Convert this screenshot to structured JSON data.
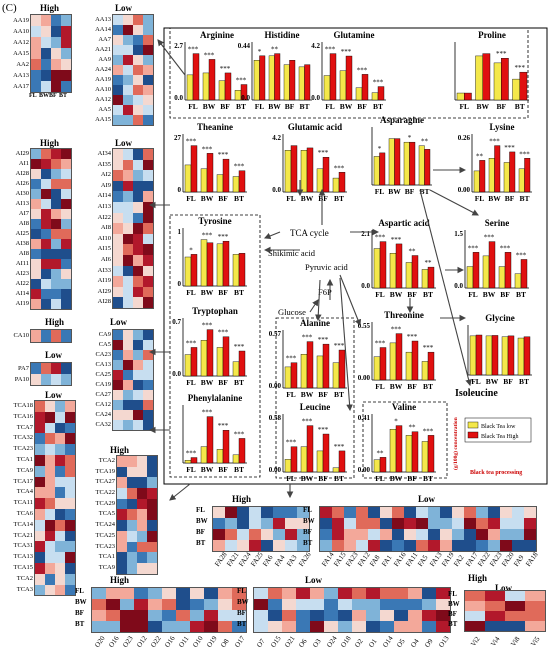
{
  "panel_label": "(C)",
  "group_labels": {
    "high": "High",
    "low": "Low"
  },
  "conditions": [
    "FL",
    "BW",
    "BF",
    "BT"
  ],
  "legend": {
    "low": "Black Tea low",
    "high": "Black Tea High",
    "ylabel": "(g/100g) concentration",
    "xlabel": "Black tea processing"
  },
  "pathway": {
    "tca_cycle": "TCA cycle",
    "shikimic_acid": "Shikimic acid",
    "pyruvic_acid": "Pyruvic acid",
    "f6p": "F6P",
    "glucose": "Glucose",
    "isoleucine": "Isoleucine"
  },
  "colors": {
    "low": "#f4e84a",
    "high": "#e01010",
    "arrow": "#444444"
  },
  "chart_data": [
    {
      "type": "bar",
      "title": "Arginine",
      "categories": [
        "FL",
        "BW",
        "BF",
        "BT"
      ],
      "ymax_label": "2.7",
      "ymin_label": "0.0",
      "series": [
        {
          "name": "Black Tea low",
          "values": [
            1.3,
            1.4,
            1.0,
            0.5
          ]
        },
        {
          "name": "Black Tea High",
          "values": [
            2.4,
            2.1,
            1.4,
            0.8
          ]
        }
      ],
      "sig": [
        "***",
        "***",
        "***",
        "***"
      ]
    },
    {
      "type": "bar",
      "title": "Histidine",
      "categories": [
        "FL",
        "BW",
        "BF",
        "BT"
      ],
      "ymax_label": "0.44",
      "ymin_label": "0.0",
      "series": [
        {
          "name": "Black Tea low",
          "values": [
            0.36,
            0.4,
            0.32,
            0.3
          ]
        },
        {
          "name": "Black Tea High",
          "values": [
            0.4,
            0.42,
            0.36,
            0.32
          ]
        }
      ],
      "sig": [
        "*",
        "**",
        "",
        ""
      ]
    },
    {
      "type": "bar",
      "title": "Glutamine",
      "categories": [
        "FL",
        "BW",
        "BF",
        "BT"
      ],
      "ymax_label": "4.2",
      "ymin_label": "0.0",
      "series": [
        {
          "name": "Black Tea low",
          "values": [
            2.0,
            2.4,
            1.0,
            0.6
          ]
        },
        {
          "name": "Black Tea High",
          "values": [
            3.8,
            3.6,
            2.1,
            1.1
          ]
        }
      ],
      "sig": [
        "***",
        "***",
        "***",
        "***"
      ]
    },
    {
      "type": "bar",
      "title": "Proline",
      "categories": [
        "FL",
        "BW",
        "BF",
        "BT"
      ],
      "ymax_label": "",
      "ymin_label": "",
      "series": [
        {
          "name": "Black Tea low",
          "values": [
            0.3,
            1.9,
            1.6,
            0.9
          ]
        },
        {
          "name": "Black Tea High",
          "values": [
            0.3,
            2.0,
            1.8,
            1.2
          ]
        }
      ],
      "sig": [
        "",
        "",
        "***",
        "***"
      ]
    },
    {
      "type": "bar",
      "title": "Theanine",
      "categories": [
        "FL",
        "BW",
        "BF",
        "BT"
      ],
      "ymax_label": "27",
      "ymin_label": "0",
      "series": [
        {
          "name": "Black Tea low",
          "values": [
            14,
            12,
            9,
            8
          ]
        },
        {
          "name": "Black Tea High",
          "values": [
            24,
            20,
            17,
            11
          ]
        }
      ],
      "sig": [
        "***",
        "***",
        "***",
        "***"
      ]
    },
    {
      "type": "bar",
      "title": "Glutamic acid",
      "categories": [
        "FL",
        "BW",
        "BF",
        "BT"
      ],
      "ymax_label": "4.2",
      "ymin_label": "0.0",
      "series": [
        {
          "name": "Black Tea low",
          "values": [
            3.6,
            3.6,
            2.0,
            1.2
          ]
        },
        {
          "name": "Black Tea High",
          "values": [
            4.0,
            3.8,
            3.0,
            1.7
          ]
        }
      ],
      "sig": [
        "",
        "",
        "***",
        "***"
      ]
    },
    {
      "type": "bar",
      "title": "Asparagine",
      "categories": [
        "FL",
        "BW",
        "BF",
        "BT"
      ],
      "ymax_label": "",
      "ymin_label": "",
      "series": [
        {
          "name": "Black Tea low",
          "values": [
            0.8,
            1.3,
            1.2,
            1.1
          ]
        },
        {
          "name": "Black Tea High",
          "values": [
            0.9,
            1.3,
            1.2,
            1.0
          ]
        }
      ],
      "sig": [
        "*",
        "",
        "*",
        "**"
      ]
    },
    {
      "type": "bar",
      "title": "Lysine",
      "categories": [
        "FL",
        "BW",
        "BF",
        "BT"
      ],
      "ymax_label": "0.26",
      "ymin_label": "0.00",
      "series": [
        {
          "name": "Black Tea low",
          "values": [
            0.1,
            0.16,
            0.14,
            0.11
          ]
        },
        {
          "name": "Black Tea High",
          "values": [
            0.15,
            0.22,
            0.19,
            0.16
          ]
        }
      ],
      "sig": [
        "**",
        "***",
        "***",
        "***"
      ]
    },
    {
      "type": "bar",
      "title": "Tyrosine",
      "categories": [
        "FL",
        "BW",
        "BF",
        "BT"
      ],
      "ymax_label": "1",
      "ymin_label": "0",
      "series": [
        {
          "name": "Black Tea low",
          "values": [
            0.55,
            0.88,
            0.8,
            0.6
          ]
        },
        {
          "name": "Black Tea High",
          "values": [
            0.6,
            0.82,
            0.85,
            0.62
          ]
        }
      ],
      "sig": [
        "*",
        "***",
        "***",
        ""
      ]
    },
    {
      "type": "bar",
      "title": "Aspartic acid",
      "categories": [
        "FL",
        "BW",
        "BF",
        "BT"
      ],
      "ymax_label": "2.1",
      "ymin_label": "0.0",
      "series": [
        {
          "name": "Black Tea low",
          "values": [
            1.7,
            1.5,
            1.1,
            0.8
          ]
        },
        {
          "name": "Black Tea High",
          "values": [
            2.0,
            1.9,
            1.4,
            0.9
          ]
        }
      ],
      "sig": [
        "***",
        "***",
        "**",
        "**"
      ]
    },
    {
      "type": "bar",
      "title": "Serine",
      "categories": [
        "FL",
        "BW",
        "BF",
        "BT"
      ],
      "ymax_label": "1.5",
      "ymin_label": "0.0",
      "series": [
        {
          "name": "Black Tea low",
          "values": [
            0.6,
            0.9,
            0.6,
            0.4
          ]
        },
        {
          "name": "Black Tea High",
          "values": [
            1.0,
            1.3,
            1.0,
            0.8
          ]
        }
      ],
      "sig": [
        "***",
        "***",
        "***",
        "***"
      ]
    },
    {
      "type": "bar",
      "title": "Tryptophan",
      "categories": [
        "FL",
        "BW",
        "BF",
        "BT"
      ],
      "ymax_label": "0.7",
      "ymin_label": "0.0",
      "series": [
        {
          "name": "Black Tea low",
          "values": [
            0.3,
            0.5,
            0.4,
            0.2
          ]
        },
        {
          "name": "Black Tea High",
          "values": [
            0.4,
            0.65,
            0.55,
            0.35
          ]
        }
      ],
      "sig": [
        "***",
        "***",
        "***",
        "***"
      ]
    },
    {
      "type": "bar",
      "title": "Alanine",
      "categories": [
        "FL",
        "BW",
        "BF",
        "BT"
      ],
      "ymax_label": "0.57",
      "ymin_label": "0.00",
      "series": [
        {
          "name": "Black Tea low",
          "values": [
            0.25,
            0.4,
            0.38,
            0.3
          ]
        },
        {
          "name": "Black Tea High",
          "values": [
            0.3,
            0.55,
            0.52,
            0.45
          ]
        }
      ],
      "sig": [
        "***",
        "***",
        "***",
        "***"
      ]
    },
    {
      "type": "bar",
      "title": "Threonine",
      "categories": [
        "FL",
        "BW",
        "BF",
        "BT"
      ],
      "ymax_label": "0.55",
      "ymin_label": "0.00",
      "series": [
        {
          "name": "Black Tea low",
          "values": [
            0.25,
            0.4,
            0.3,
            0.2
          ]
        },
        {
          "name": "Black Tea High",
          "values": [
            0.35,
            0.5,
            0.42,
            0.3
          ]
        }
      ],
      "sig": [
        "***",
        "***",
        "***",
        "***"
      ]
    },
    {
      "type": "bar",
      "title": "Glycine",
      "categories": [
        "FL",
        "BW",
        "BF",
        "BT"
      ],
      "ymax_label": "",
      "ymin_label": "",
      "series": [
        {
          "name": "Black Tea low",
          "values": [
            0.9,
            0.9,
            0.88,
            0.85
          ]
        },
        {
          "name": "Black Tea High",
          "values": [
            0.92,
            0.91,
            0.9,
            0.88
          ]
        }
      ],
      "sig": [
        "",
        "",
        "",
        ""
      ]
    },
    {
      "type": "bar",
      "title": "Phenylalanine",
      "categories": [
        "FL",
        "BW",
        "BF",
        "BT"
      ],
      "ymax_label": "",
      "ymin_label": "",
      "series": [
        {
          "name": "Black Tea low",
          "values": [
            0.05,
            0.3,
            0.25,
            0.15
          ]
        },
        {
          "name": "Black Tea High",
          "values": [
            0.1,
            0.85,
            0.6,
            0.45
          ]
        }
      ],
      "sig": [
        "***",
        "***",
        "***",
        "***"
      ]
    },
    {
      "type": "bar",
      "title": "Leucine",
      "categories": [
        "FL",
        "BW",
        "BF",
        "BT"
      ],
      "ymax_label": "0.58",
      "ymin_label": "0.00",
      "series": [
        {
          "name": "Black Tea low",
          "values": [
            0.15,
            0.3,
            0.25,
            0.05
          ]
        },
        {
          "name": "Black Tea High",
          "values": [
            0.3,
            0.55,
            0.45,
            0.25
          ]
        }
      ],
      "sig": [
        "***",
        "***",
        "***",
        "***"
      ]
    },
    {
      "type": "bar",
      "title": "Valine",
      "categories": [
        "FL",
        "BW",
        "BF",
        "BT"
      ],
      "ymax_label": "0.41",
      "ymin_label": "0.00",
      "series": [
        {
          "name": "Black Tea low",
          "values": [
            0.1,
            0.35,
            0.3,
            0.25
          ]
        },
        {
          "name": "Black Tea High",
          "values": [
            0.12,
            0.38,
            0.33,
            0.3
          ]
        }
      ],
      "sig": [
        "**",
        "*",
        "**",
        "***"
      ]
    }
  ],
  "heatmaps": {
    "aa_high": {
      "rows": [
        "AA19",
        "AA10",
        "AA12",
        "AA15",
        "AA2",
        "AA13",
        "AA17"
      ],
      "cols": [
        "FL",
        "BW",
        "BF",
        "BT"
      ]
    },
    "aa_low": {
      "rows": [
        "AA13",
        "AA14",
        "AA7",
        "AA21",
        "AA9",
        "AA24",
        "AA19",
        "AA10",
        "AA12",
        "AA5",
        "AA15"
      ]
    },
    "ai_high": {
      "rows": [
        "AI29",
        "AI1",
        "AI28",
        "AI26",
        "AI30",
        "AI13",
        "AI7",
        "AI8",
        "AI25",
        "AI38",
        "AI8",
        "AI11",
        "AI23",
        "AI22",
        "AI14",
        "AI19"
      ]
    },
    "ai_low": {
      "rows": [
        "AI34",
        "AI35",
        "AI2",
        "AI9",
        "AI14",
        "AI13",
        "AI22",
        "AI8",
        "AI10",
        "AI15",
        "AI6",
        "AI33",
        "AI19",
        "AI29",
        "AI28"
      ]
    },
    "ca_high": {
      "rows": [
        "CA10"
      ]
    },
    "ca_low": {
      "rows": [
        "CA9",
        "CA5",
        "CA23",
        "CA13",
        "CA25",
        "CA19",
        "CA27",
        "CA12",
        "CA24",
        "CA32"
      ]
    },
    "pa": {
      "rows": [
        "PA7",
        "PA10"
      ]
    },
    "tca_low": {
      "rows": [
        "TCA18",
        "TCA16",
        "TCA7",
        "TCA32",
        "TCA23",
        "TCA1",
        "TCA9",
        "TCA17",
        "TCA4",
        "TCA11",
        "TCA6",
        "TCA14",
        "TCA21",
        "TCA31",
        "TCA13",
        "TCA15",
        "TCA2",
        "TCA3"
      ]
    },
    "tca_high": {
      "rows": [
        "TCA2",
        "TCA19",
        "TCA27",
        "TCA22",
        "TCA29",
        "TCA5",
        "TCA24",
        "TCA25",
        "TCA23",
        "TCA1",
        "TCA9"
      ]
    },
    "fa_high": {
      "cols": [
        "FA28",
        "FA21",
        "FA24",
        "FA25",
        "FA6",
        "FA4",
        "FA3",
        "FA26"
      ]
    },
    "fa_low": {
      "cols": [
        "FA14",
        "FA15",
        "FA23",
        "FA12",
        "FA8",
        "FA1",
        "FA16",
        "FA11",
        "FA5",
        "FA13",
        "FA19",
        "FA2",
        "FA17",
        "FA22",
        "FA23",
        "FA20",
        "FA9",
        "FA18"
      ]
    },
    "o_high": {
      "cols": [
        "O20",
        "O16",
        "O23",
        "O12",
        "O22",
        "O16",
        "O11",
        "O10",
        "O19",
        "O8",
        "O17"
      ]
    },
    "o_low": {
      "cols": [
        "O7",
        "O15",
        "O21",
        "O6",
        "O3",
        "O24",
        "O18",
        "O2",
        "O1",
        "O14",
        "O5",
        "O4",
        "O9",
        "O13"
      ]
    },
    "vi": {
      "cols_high": [
        "Vi2"
      ],
      "cols_low": [
        "Vi4",
        "Vi8",
        "Vi5"
      ]
    }
  }
}
